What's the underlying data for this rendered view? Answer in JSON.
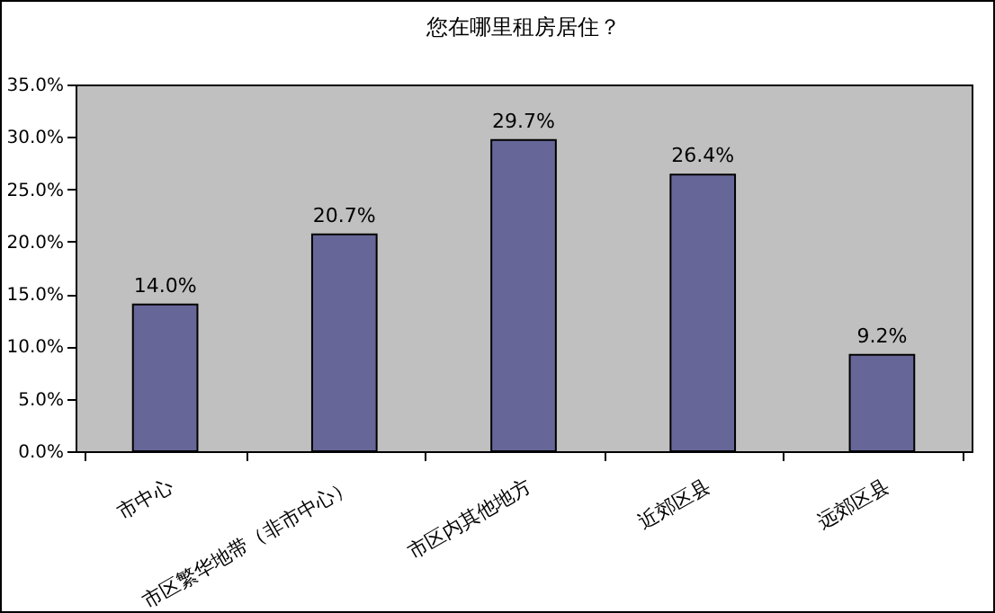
{
  "chart_data": {
    "type": "bar",
    "title": "您在哪里租房居住？",
    "categories": [
      "市中心",
      "市区繁华地带（非市中心）",
      "市区内其他地方",
      "近郊区县",
      "远郊区县"
    ],
    "values": [
      14.0,
      20.7,
      29.7,
      26.4,
      9.2
    ],
    "value_labels": [
      "14.0%",
      "20.7%",
      "29.7%",
      "26.4%",
      "9.2%"
    ],
    "color": "#666699",
    "ylim": [
      0,
      35
    ],
    "yticks": [
      {
        "value": 0,
        "label": "0.0%"
      },
      {
        "value": 5,
        "label": "5.0%"
      },
      {
        "value": 10,
        "label": "10.0%"
      },
      {
        "value": 15,
        "label": "15.0%"
      },
      {
        "value": 20,
        "label": "20.0%"
      },
      {
        "value": 25,
        "label": "25.0%"
      },
      {
        "value": 30,
        "label": "30.0%"
      },
      {
        "value": 35,
        "label": "35.0%"
      }
    ],
    "grid": false
  }
}
